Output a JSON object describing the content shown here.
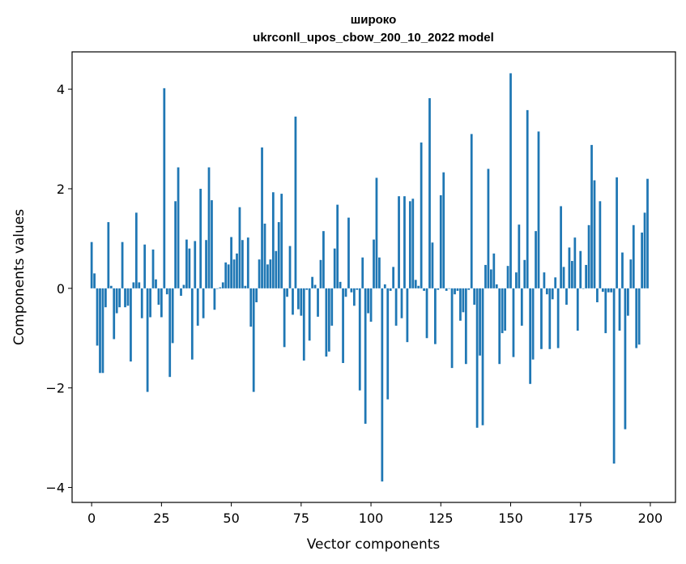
{
  "chart_data": {
    "type": "bar",
    "title": "широко",
    "subtitle": "ukrconll_upos_cbow_200_10_2022 model",
    "xlabel": "Vector components",
    "ylabel": "Components values",
    "xlim": [
      -7,
      209
    ],
    "ylim": [
      -4.3,
      4.75
    ],
    "xticks": [
      0,
      25,
      50,
      75,
      100,
      125,
      150,
      175,
      200
    ],
    "yticks": [
      -4,
      -2,
      0,
      2,
      4
    ],
    "ytick_labels": [
      "−4",
      "−2",
      "0",
      "2",
      "4"
    ],
    "bar_color": "#1f77b4",
    "grid": false,
    "x": [
      0,
      1,
      2,
      3,
      4,
      5,
      6,
      7,
      8,
      9,
      10,
      11,
      12,
      13,
      14,
      15,
      16,
      17,
      18,
      19,
      20,
      21,
      22,
      23,
      24,
      25,
      26,
      27,
      28,
      29,
      30,
      31,
      32,
      33,
      34,
      35,
      36,
      37,
      38,
      39,
      40,
      41,
      42,
      43,
      44,
      45,
      46,
      47,
      48,
      49,
      50,
      51,
      52,
      53,
      54,
      55,
      56,
      57,
      58,
      59,
      60,
      61,
      62,
      63,
      64,
      65,
      66,
      67,
      68,
      69,
      70,
      71,
      72,
      73,
      74,
      75,
      76,
      77,
      78,
      79,
      80,
      81,
      82,
      83,
      84,
      85,
      86,
      87,
      88,
      89,
      90,
      91,
      92,
      93,
      94,
      95,
      96,
      97,
      98,
      99,
      100,
      101,
      102,
      103,
      104,
      105,
      106,
      107,
      108,
      109,
      110,
      111,
      112,
      113,
      114,
      115,
      116,
      117,
      118,
      119,
      120,
      121,
      122,
      123,
      124,
      125,
      126,
      127,
      128,
      129,
      130,
      131,
      132,
      133,
      134,
      135,
      136,
      137,
      138,
      139,
      140,
      141,
      142,
      143,
      144,
      145,
      146,
      147,
      148,
      149,
      150,
      151,
      152,
      153,
      154,
      155,
      156,
      157,
      158,
      159,
      160,
      161,
      162,
      163,
      164,
      165,
      166,
      167,
      168,
      169,
      170,
      171,
      172,
      173,
      174,
      175,
      176,
      177,
      178,
      179,
      180,
      181,
      182,
      183,
      184,
      185,
      186,
      187,
      188,
      189,
      190,
      191,
      192,
      193,
      194,
      195,
      196,
      197,
      198,
      199
    ],
    "values": [
      0.93,
      0.3,
      -1.15,
      -1.7,
      -1.7,
      -0.38,
      1.33,
      0.05,
      -1.02,
      -0.5,
      -0.38,
      0.93,
      -0.38,
      -0.35,
      -1.47,
      0.12,
      1.52,
      0.12,
      -0.6,
      0.88,
      -2.08,
      -0.58,
      0.78,
      0.18,
      -0.33,
      -0.58,
      4.02,
      -0.12,
      -1.78,
      -1.1,
      1.75,
      2.43,
      -0.15,
      0.07,
      0.98,
      0.8,
      -1.43,
      0.95,
      -0.75,
      2.0,
      -0.6,
      0.97,
      2.43,
      1.77,
      -0.43,
      0.0,
      0.02,
      0.12,
      0.52,
      0.48,
      1.03,
      0.58,
      0.7,
      1.63,
      0.97,
      0.05,
      1.02,
      -0.77,
      -2.08,
      -0.28,
      0.58,
      2.83,
      1.3,
      0.48,
      0.58,
      1.93,
      0.75,
      1.33,
      1.9,
      -1.18,
      -0.17,
      0.85,
      -0.53,
      3.45,
      -0.42,
      -0.55,
      -1.45,
      -0.03,
      -1.05,
      0.23,
      0.07,
      -0.57,
      0.57,
      1.15,
      -1.37,
      -1.27,
      -0.75,
      0.8,
      1.68,
      0.13,
      -1.5,
      -0.17,
      1.42,
      -0.08,
      -0.35,
      -0.03,
      -2.05,
      0.62,
      -2.72,
      -0.5,
      -0.67,
      0.98,
      2.22,
      0.62,
      -3.88,
      0.08,
      -2.23,
      -0.05,
      0.43,
      -0.75,
      1.85,
      -0.6,
      1.85,
      -1.08,
      1.75,
      1.8,
      0.17,
      0.05,
      2.93,
      -0.05,
      -1.0,
      3.82,
      0.92,
      -1.12,
      -0.03,
      1.87,
      2.33,
      -0.05,
      0.0,
      -1.6,
      -0.12,
      -0.05,
      -0.65,
      -0.48,
      -1.52,
      -0.03,
      3.1,
      -0.33,
      -2.8,
      -1.35,
      -2.75,
      0.47,
      2.4,
      0.38,
      0.7,
      0.08,
      -1.52,
      -0.9,
      -0.85,
      0.45,
      4.32,
      -1.38,
      0.32,
      1.28,
      -0.75,
      0.57,
      3.58,
      -1.92,
      -1.43,
      1.15,
      3.15,
      -1.22,
      0.32,
      -0.12,
      -1.22,
      -0.22,
      0.22,
      -1.2,
      1.65,
      0.43,
      -0.33,
      0.82,
      0.55,
      1.02,
      -0.85,
      0.75,
      0.0,
      0.47,
      1.27,
      2.88,
      2.17,
      -0.28,
      1.75,
      -0.07,
      -0.9,
      -0.08,
      -0.08,
      -3.52,
      2.23,
      -0.85,
      0.72,
      -2.83,
      -0.55,
      0.58,
      1.27,
      -1.2,
      -1.13,
      1.12,
      1.52,
      2.2
    ]
  }
}
